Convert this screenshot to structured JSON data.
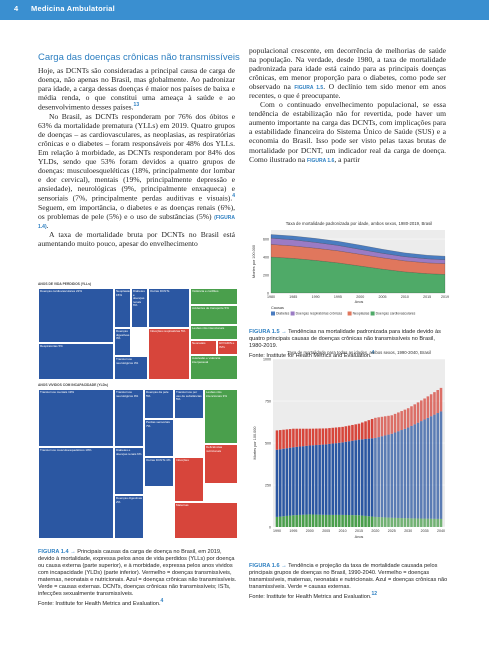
{
  "header": {
    "page_number": "4",
    "running_title": "Medicina Ambulatorial"
  },
  "section_title": "Carga das doenças crônicas não transmissíveis",
  "col1": {
    "p1": "Hoje, as DCNTs são consideradas a principal causa de carga de doença, não apenas no Brasil, mas globalmente. Ao padronizar para idade, a carga dessas doenças é maior nos países de baixa e média renda, o que constitui uma ameaça à saúde e ao desenvolvimento desses países.",
    "p1_ref": "13",
    "p2a": "No Brasil, as DCNTs responderam por 76% dos óbitos e 63% da mortalidade prematura (YLLs) em 2019. Quatro grupos de doenças – as cardiovasculares, as neoplasias, as respiratórias crônicas e o diabetes – foram responsáveis por 48% dos YLLs. Em relação à morbidade, as DCNTs responderam por 84% dos YLDs, sendo que 53% foram devidos a quatro grupos de doenças: musculoesqueléticas (18%, principalmente dor lombar e dor cervical), mentais (19%, principalmente depressão e ansiedade), neurológicas (9%, principalmente enxaqueca) e sensoriais (7%, principalmente perdas auditivas e visuais).",
    "p2_ref": "4",
    "p2b": " Seguem, em importância, o diabetes e as doenças renais (6%), os problemas de pele (5%) e o uso de substâncias (5%) ",
    "p2_fig": "(FIGURA 1.4)",
    "p3": "A taxa de mortalidade bruta por DCNTs no Brasil está aumentando muito pouco, apesar do envelhecimento"
  },
  "col2": {
    "p1": "populacional crescente, em decorrência de melhorias de saúde na população. Na verdade, desde 1980, a taxa de mortalidade padronizada para idade está caindo para as principais doenças crônicas, em menor proporção para o diabetes, como pode ser observado na ",
    "p1_fig": "FIGURA 1.5",
    "p1b": ". O declínio tem sido menor em anos recentes, o que é preocupante.",
    "p2": "Com o continuado envelhecimento populacional, se essa tendência de estabilização não for revertida, pode haver um aumento importante na carga das DCNTs, com implicações para a estabilidade financeira do Sistema Único de Saúde (SUS) e a economia do Brasil. Isso pode ser visto pelas taxas brutas de mortalidade por DCNT, um indicador real da carga de doença. Como ilustrado na ",
    "p2_fig": "FIGURA 1.6",
    "p2b": ", a partir"
  },
  "fig14": {
    "top_label": "ANOS DE VIDA PERDIDOS (YLLs)",
    "bottom_label": "ANOS VIVIDOS COM INCAPACIDADE (YLDs)",
    "caption_fig": "FIGURA 1.4 →",
    "caption": " Principais causas da carga de doença no Brasil, em 2019, devido à mortalidade, expressa pelos anos de vida perdidos (YLLs) por doença ou causa externa (parte superior), e à morbidade, expressa pelos anos vividos com incapacidade (YLDs) (parte inferior). Vermelho = doenças transmissíveis, maternas, neonatais e nutricionais. Azul = doenças crônicas não transmissíveis. Verde = causas externas. DCNTs, doenças crônicas não transmissíveis; ISTs, infecções sexualmente transmissíveis.",
    "source": "Fonte: Institute for Health Metrics and Evaluation.",
    "source_ref": "4",
    "yll_cells": [
      {
        "label": "Doenças cardiovasculares 22%",
        "color": "blue"
      },
      {
        "label": "Neoplasias 15%",
        "color": "blue"
      },
      {
        "label": "Diabetes e doenças renais 6%",
        "color": "blue"
      },
      {
        "label": "Violência e conflitos",
        "color": "green"
      },
      {
        "label": "Respiratórias 5%",
        "color": "blue"
      },
      {
        "label": "Doenças digestivas 3%",
        "color": "blue"
      },
      {
        "label": "Transtornos neurológicos 3%",
        "color": "blue"
      },
      {
        "label": "Outras DCNTs",
        "color": "blue"
      },
      {
        "label": "Acidentes de transporte 5%",
        "color": "green"
      },
      {
        "label": "Lesões não intencionais",
        "color": "green"
      },
      {
        "label": "Infecções respiratórias 5%",
        "color": "red"
      },
      {
        "label": "Neonatais",
        "color": "red"
      },
      {
        "label": "HIV/AIDS e ISTs",
        "color": "red"
      },
      {
        "label": "Autolesão e violência interpessoal",
        "color": "green"
      }
    ],
    "yld_cells": [
      {
        "label": "Transtornos mentais 19%",
        "color": "blue"
      },
      {
        "label": "Transtornos neurológicos 9%",
        "color": "blue"
      },
      {
        "label": "Doenças da pele 5%",
        "color": "blue"
      },
      {
        "label": "Transtornos por uso de substâncias 5%",
        "color": "blue"
      },
      {
        "label": "Transtornos musculoesqueléticos 18%",
        "color": "blue"
      },
      {
        "label": "Diabetes e doenças renais 6%",
        "color": "blue"
      },
      {
        "label": "Perdas sensoriais 7%",
        "color": "blue"
      },
      {
        "label": "Outras DCNTs 4%",
        "color": "blue"
      },
      {
        "label": "Doenças digestivas 2%",
        "color": "blue"
      },
      {
        "label": "Lesões não intencionais 3%",
        "color": "green"
      },
      {
        "label": "Deficiências nutricionais",
        "color": "red"
      },
      {
        "label": "Infecções",
        "color": "red"
      },
      {
        "label": "Maternas",
        "color": "red"
      }
    ]
  },
  "fig15": {
    "caption_fig": "FIGURA 1.5 →",
    "caption": " Tendências na mortalidade padronizada para idade devido às quatro principais causas de doenças crônicas não transmissíveis no Brasil, 1980-2019.",
    "source": "Fonte: Institute for Health Metrics and Evaluation.",
    "source_ref": "4"
  },
  "fig16": {
    "caption_fig": "FIGURA 1.6 →",
    "caption": " Tendência e projeção da taxa de mortalidade causada pelos principais grupos de doenças no Brasil, 1990-2040. Vermelho = doenças transmissíveis, maternas, neonatais e nutricionais. Azul = doenças crônicas não transmissíveis. Verde = causas externas.",
    "source": "Fonte: Institute for Health Metrics and Evaluation.",
    "source_ref": "12"
  },
  "colors": {
    "accent": "#2d7fc1",
    "header_bar": "#3a8fd0",
    "diabetes": "#4a7cc0",
    "respiratory": "#9b7bc4",
    "neoplasms": "#e0775d",
    "cardiovascular": "#4faa68",
    "cd": "#d7453b",
    "ncd": "#2b57a2",
    "inj": "#4a9f4c"
  },
  "chart_data": [
    {
      "type": "area",
      "title": "Taxa de mortalidade padronizada por idade, ambos sexos, 1980-2019, Brasil",
      "xlabel": "Anos",
      "ylabel": "Mortes por 100.000",
      "ylim": [
        0,
        700
      ],
      "yticks": [
        "0",
        "200",
        "400",
        "600"
      ],
      "xticks": [
        "1980",
        "1985",
        "1990",
        "1995",
        "2000",
        "2005",
        "2010",
        "2015",
        "2019"
      ],
      "legend_title": "Causas",
      "x": [
        1980,
        1985,
        1990,
        1995,
        2000,
        2005,
        2010,
        2015,
        2019
      ],
      "series": [
        {
          "name": "Diabetes",
          "values": [
            40,
            42,
            45,
            46,
            47,
            45,
            42,
            40,
            39
          ]
        },
        {
          "name": "Doenças respiratórias crônicas",
          "values": [
            70,
            68,
            64,
            60,
            55,
            50,
            47,
            45,
            44
          ]
        },
        {
          "name": "Neoplasias",
          "values": [
            140,
            138,
            136,
            134,
            130,
            126,
            122,
            120,
            119
          ]
        },
        {
          "name": "Doenças cardiovasculares",
          "values": [
            400,
            385,
            362,
            335,
            300,
            265,
            235,
            215,
            207
          ]
        }
      ]
    },
    {
      "type": "bar",
      "title": "Taxa de mortalidade para todas as idades, ambos sexos, 1990-2040, Brasil",
      "xlabel": "Anos",
      "ylabel": "Mortes por 100.000",
      "ylim": [
        0,
        1000
      ],
      "yticks": [
        "0",
        "250",
        "500",
        "750",
        "1000"
      ],
      "xticks": [
        "1990",
        "1995",
        "2000",
        "2005",
        "2010",
        "2015",
        "2020",
        "2025",
        "2030",
        "2035",
        "2040"
      ],
      "x": [
        1990,
        1995,
        2000,
        2005,
        2010,
        2015,
        2020,
        2025,
        2030,
        2035,
        2040
      ],
      "series": [
        {
          "name": "Azul",
          "values": [
            400,
            405,
            410,
            420,
            432,
            450,
            470,
            500,
            540,
            590,
            640
          ]
        },
        {
          "name": "Verde",
          "values": [
            60,
            70,
            75,
            72,
            72,
            70,
            60,
            55,
            52,
            50,
            48
          ]
        },
        {
          "name": "Vermelho",
          "values": [
            115,
            110,
            100,
            95,
            92,
            95,
            120,
            110,
            115,
            125,
            140
          ]
        }
      ]
    }
  ]
}
